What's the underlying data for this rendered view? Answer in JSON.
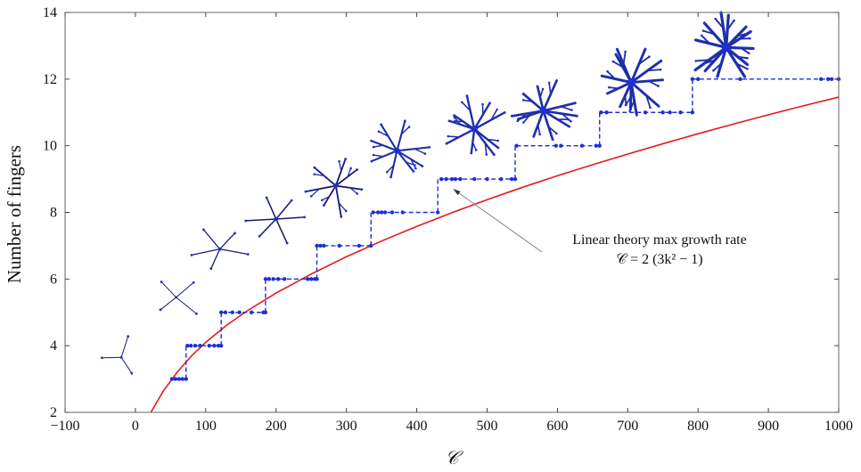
{
  "chart_data": {
    "type": "line",
    "xlabel": "𝒞",
    "ylabel": "Number of fingers",
    "xlim": [
      -100,
      1000
    ],
    "ylim": [
      2,
      14
    ],
    "x_ticks": [
      -100,
      0,
      100,
      200,
      300,
      400,
      500,
      600,
      700,
      800,
      900,
      1000
    ],
    "x_tick_labels": [
      "−100",
      "0",
      "100",
      "200",
      "300",
      "400",
      "500",
      "600",
      "700",
      "800",
      "900",
      "1000"
    ],
    "y_ticks": [
      2,
      4,
      6,
      8,
      10,
      12,
      14
    ],
    "y_tick_labels": [
      "2",
      "4",
      "6",
      "8",
      "10",
      "12",
      "14"
    ],
    "grid": false,
    "series": [
      {
        "kind": "linear-theory-curve",
        "color": "#e31a1c",
        "formula": "C = 2(3k^2 - 1)",
        "x": [
          22,
          40,
          60,
          80,
          100,
          130,
          160,
          200,
          250,
          300,
          350,
          400,
          450,
          500,
          550,
          600,
          650,
          700,
          750,
          800,
          850,
          900,
          950,
          1000
        ],
        "values": [
          2.0,
          2.65,
          3.22,
          3.7,
          4.1,
          4.62,
          5.06,
          5.58,
          6.15,
          6.67,
          7.14,
          7.58,
          7.99,
          8.38,
          8.75,
          9.1,
          9.43,
          9.75,
          10.06,
          10.36,
          10.65,
          10.93,
          11.2,
          11.46
        ]
      },
      {
        "kind": "simulation-steps",
        "color": "#1f2ed8",
        "steps": [
          {
            "n": 3,
            "x": [
              52,
              57,
              62,
              67,
              72
            ]
          },
          {
            "n": 4,
            "x": [
              74,
              79,
              85,
              92,
              105,
              112,
              118,
              122
            ]
          },
          {
            "n": 5,
            "x": [
              122,
              128,
              138,
              148,
              165,
              182,
              185
            ]
          },
          {
            "n": 6,
            "x": [
              185,
              190,
              196,
              203,
              212,
              245,
              250,
              255,
              258
            ]
          },
          {
            "n": 7,
            "x": [
              258,
              263,
              268,
              290,
              318,
              335
            ]
          },
          {
            "n": 8,
            "x": [
              338,
              345,
              350,
              355,
              365,
              380,
              430
            ]
          },
          {
            "n": 9,
            "x": [
              435,
              442,
              450,
              455,
              462,
              482,
              500,
              520,
              535,
              540
            ]
          },
          {
            "n": 10,
            "x": [
              542,
              598,
              605,
              635,
              655,
              660
            ]
          },
          {
            "n": 11,
            "x": [
              662,
              670,
              725,
              750,
              760,
              775,
              792
            ]
          },
          {
            "n": 12,
            "x": [
              792,
              800,
              860,
              975,
              985,
              990,
              1000
            ]
          }
        ]
      }
    ],
    "annotation": {
      "line1": "Linear theory max growth rate",
      "line2": "𝒞 = 2 (3k² − 1)",
      "arrow_target_x": 452,
      "arrow_target_y": 8.7
    },
    "patterns": [
      {
        "fingers": 3,
        "x": -20,
        "y": 3.65
      },
      {
        "fingers": 4,
        "x": 58,
        "y": 5.45
      },
      {
        "fingers": 5,
        "x": 120,
        "y": 6.9
      },
      {
        "fingers": 6,
        "x": 200,
        "y": 7.8
      },
      {
        "fingers": 7,
        "x": 285,
        "y": 8.8
      },
      {
        "fingers": 8,
        "x": 372,
        "y": 9.85
      },
      {
        "fingers": 9,
        "x": 482,
        "y": 10.5
      },
      {
        "fingers": 10,
        "x": 580,
        "y": 11.05
      },
      {
        "fingers": 11,
        "x": 705,
        "y": 11.9
      },
      {
        "fingers": 12,
        "x": 840,
        "y": 12.95
      }
    ]
  }
}
